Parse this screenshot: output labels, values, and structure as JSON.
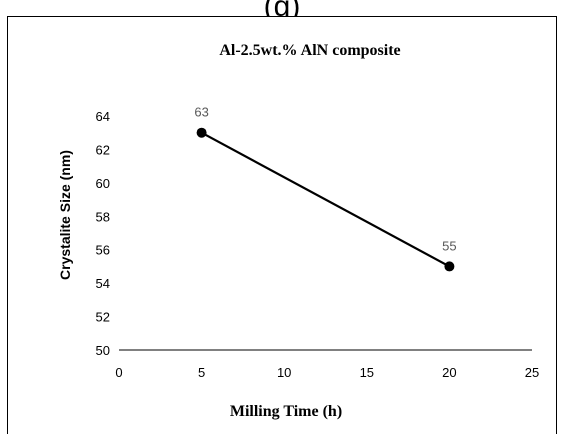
{
  "figure": {
    "panel_label_fragment": "(g)"
  },
  "chart_data": {
    "type": "line",
    "title": "Al-2.5wt.% AlN composite",
    "xlabel": "Milling Time (h)",
    "ylabel": "Crystalite Size (nm)",
    "xlim": [
      0,
      25
    ],
    "ylim": [
      50,
      64
    ],
    "x_ticks": [
      0,
      5,
      10,
      15,
      20,
      25
    ],
    "y_ticks": [
      50,
      52,
      54,
      56,
      58,
      60,
      62,
      64
    ],
    "grid": false,
    "legend": "none",
    "series": [
      {
        "x": [
          5,
          20
        ],
        "values": [
          63,
          55
        ],
        "data_labels": [
          "63",
          "55"
        ],
        "color": "#000000"
      }
    ]
  }
}
